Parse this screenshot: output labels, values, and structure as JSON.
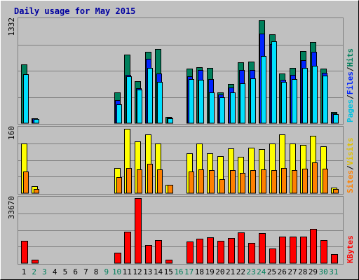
{
  "chart_data": {
    "title": "Daily usage for May 2015",
    "days": [
      "1",
      "2",
      "3",
      "4",
      "5",
      "6",
      "7",
      "8",
      "9",
      "10",
      "11",
      "12",
      "13",
      "14",
      "15",
      "16",
      "17",
      "18",
      "19",
      "20",
      "21",
      "22",
      "23",
      "24",
      "25",
      "26",
      "27",
      "28",
      "29",
      "30",
      "31"
    ],
    "weekend_days": [
      "2",
      "3",
      "9",
      "10",
      "16",
      "17",
      "23",
      "24",
      "30",
      "31"
    ],
    "panels": [
      {
        "type": "bar",
        "max_label": "1332",
        "ylim": [
          0,
          1332
        ],
        "legend": [
          "Pages",
          "Files",
          "Hits"
        ],
        "series": [
          {
            "name": "Hits",
            "color": "#00805c",
            "values": [
              760,
              60,
              0,
              0,
              0,
              0,
              0,
              0,
              0,
              400,
              880,
              540,
              920,
              950,
              80,
              0,
              700,
              720,
              710,
              400,
              500,
              780,
              790,
              1320,
              1140,
              640,
              710,
              930,
              1040,
              700,
              140
            ]
          },
          {
            "name": "Files",
            "color": "#0024ff",
            "values": [
              0,
              60,
              0,
              0,
              0,
              0,
              0,
              0,
              0,
              300,
              620,
              450,
              830,
              640,
              70,
              0,
              600,
              680,
              570,
              370,
              460,
              680,
              680,
              1150,
              1020,
              560,
              620,
              810,
              920,
              650,
              130
            ]
          },
          {
            "name": "Pages",
            "color": "#00e0ff",
            "values": [
              630,
              50,
              0,
              0,
              0,
              0,
              0,
              0,
              0,
              240,
              600,
              430,
              710,
              530,
              60,
              0,
              570,
              560,
              400,
              330,
              400,
              510,
              580,
              860,
              1050,
              530,
              570,
              710,
              740,
              610,
              120
            ]
          }
        ]
      },
      {
        "type": "bar",
        "max_label": "160",
        "ylim": [
          0,
          160
        ],
        "legend": [
          "Sites",
          "Visits"
        ],
        "series": [
          {
            "name": "Visits",
            "color": "#ffff00",
            "values": [
              122,
              18,
              0,
              0,
              0,
              0,
              0,
              0,
              0,
              62,
              158,
              128,
              145,
              122,
              20,
              0,
              98,
              122,
              98,
              92,
              110,
              90,
              112,
              108,
              122,
              145,
              122,
              118,
              141,
              115,
              14
            ]
          },
          {
            "name": "Sites",
            "color": "#ff8000",
            "values": [
              54,
              10,
              0,
              0,
              0,
              0,
              0,
              0,
              0,
              40,
              62,
              58,
              72,
              58,
              20,
              0,
              54,
              58,
              56,
              34,
              56,
              50,
              56,
              58,
              56,
              62,
              56,
              60,
              76,
              60,
              10
            ]
          }
        ]
      },
      {
        "type": "bar",
        "max_label": "33670",
        "ylim": [
          0,
          33670
        ],
        "legend": [
          "KBytes"
        ],
        "series": [
          {
            "name": "KBytes",
            "color": "#ff0000",
            "values": [
              11600,
              1800,
              0,
              0,
              0,
              0,
              0,
              0,
              0,
              5300,
              16400,
              33600,
              9300,
              11900,
              1800,
              0,
              11100,
              12800,
              13300,
              11600,
              12900,
              15900,
              10500,
              15700,
              7500,
              13600,
              13900,
              13600,
              17700,
              11900,
              4800
            ]
          }
        ]
      }
    ]
  }
}
